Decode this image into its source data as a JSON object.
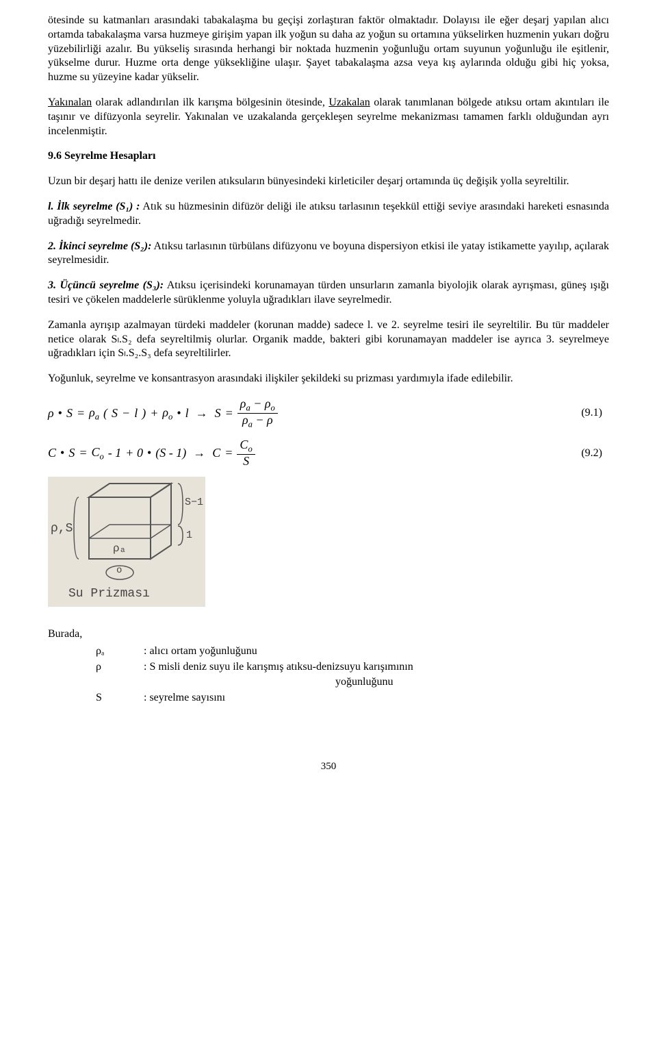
{
  "para1": "ötesinde su katmanları arasındaki tabakalaşma bu geçişi zorlaştıran faktör olmaktadır. Dolayısı ile eğer deşarj yapılan alıcı ortamda tabakalaşma varsa huzmeye girişim yapan ilk yoğun su daha az yoğun su ortamına yükselirken huzmenin yukarı doğru yüzebilirliği azalır. Bu yükseliş sırasında herhangi bir noktada huzmenin yoğunluğu ortam suyunun yoğunluğu ile eşitlenir, yükselme durur. Huzme orta denge yüksekliğine ulaşır. Şayet tabakalaşma azsa veya kış aylarında olduğu gibi hiç yoksa, huzme su yüzeyine kadar yükselir.",
  "para2_a": "Yakınalan",
  "para2_b": " olarak adlandırılan ilk karışma bölgesinin ötesinde, ",
  "para2_c": "Uzakalan",
  "para2_d": " olarak tanımlanan bölgede atıksu ortam akıntıları ile taşınır ve difüzyonla seyrelir. Yakınalan ve uzakalanda gerçekleşen seyrelme mekanizması tamamen farklı olduğundan ayrı incelenmiştir.",
  "heading": "9.6 Seyrelme Hesapları",
  "para3": "Uzun bir deşarj hattı ile denize verilen atıksuların bünyesindeki kirleticiler deşarj ortamında üç değişik yolla seyreltilir.",
  "item1_label": "l. İlk seyrelme (S₁) :",
  "item1_text": " Atık su hüzmesinin difüzör deliği ile atıksu tarlasının teşekkül ettiği seviye arasındaki hareketi esnasında uğradığı seyrelmedir.",
  "item2_label": "2. İkinci seyrelme (S₂):",
  "item2_text": " Atıksu tarlasının türbülans difüzyonu ve boyuna dispersiyon etkisi ile yatay istikamette yayılıp, açılarak seyrelmesidir.",
  "item3_label": "3. Üçüncü seyrelme (S₃):",
  "item3_text": " Atıksu içerisindeki korunamayan türden unsurların zamanla biyolojik olarak ayrışması, güneş ışığı tesiri ve çökelen maddelerle sürüklenme yoluyla uğradıkları ilave seyrelmedir.",
  "para4": "Zamanla ayrışıp azalmayan türdeki maddeler (korunan madde) sadece l. ve 2. seyrelme tesiri ile seyreltilir. Bu tür maddeler netice olarak Sₗ.S₂ defa seyreltilmiş olurlar. Organik madde, bakteri gibi korunamayan maddeler ise ayrıca 3. seyrelmeye uğradıkları için Sₗ.S₂.S₃ defa seyreltilirler.",
  "para5": "Yoğunluk, seyrelme ve konsantrasyon arasındaki ilişkiler  şekildeki su prizması yardımıyla ifade edilebilir.",
  "eq1": {
    "rho": "ρ",
    "S": "S",
    "eq": "=",
    "rhoa": "ρ",
    "sub_a": "a",
    "lp": "(",
    "minus": "−",
    "l": "l",
    "rp": ")",
    "plus": "+",
    "rhoo": "ρ",
    "sub_o": "o",
    "arrow": "→",
    "num": "(9.1)"
  },
  "eq2": {
    "C": "C",
    "S": "S",
    "Co": "C",
    "sub_o": "o",
    "minus1": "- 1",
    "plus0": "+ 0",
    "Sm1": "(S - 1)",
    "arrow": "→",
    "eq": "=",
    "num": "(9.2)"
  },
  "figure": {
    "bg": "#e8e3d8",
    "stroke": "#555",
    "label_ps": "ρ,S",
    "label_pa": "ρₐ",
    "label_o": "o",
    "label_smin1": "S−1",
    "label_1": "1",
    "caption": "Su Prizması"
  },
  "defs": {
    "title": "Burada,",
    "rows": [
      {
        "sym": "ρₐ",
        "txt": ": alıcı ortam yoğunluğunu"
      },
      {
        "sym": "ρ",
        "txt": ": S misli deniz suyu ile karışmış atıksu-denizsuyu karışımının"
      },
      {
        "sym": "",
        "txt": "yoğunluğunu",
        "indent": true
      },
      {
        "sym": "S",
        "txt": ": seyrelme sayısını"
      }
    ]
  },
  "pagenum": "350"
}
